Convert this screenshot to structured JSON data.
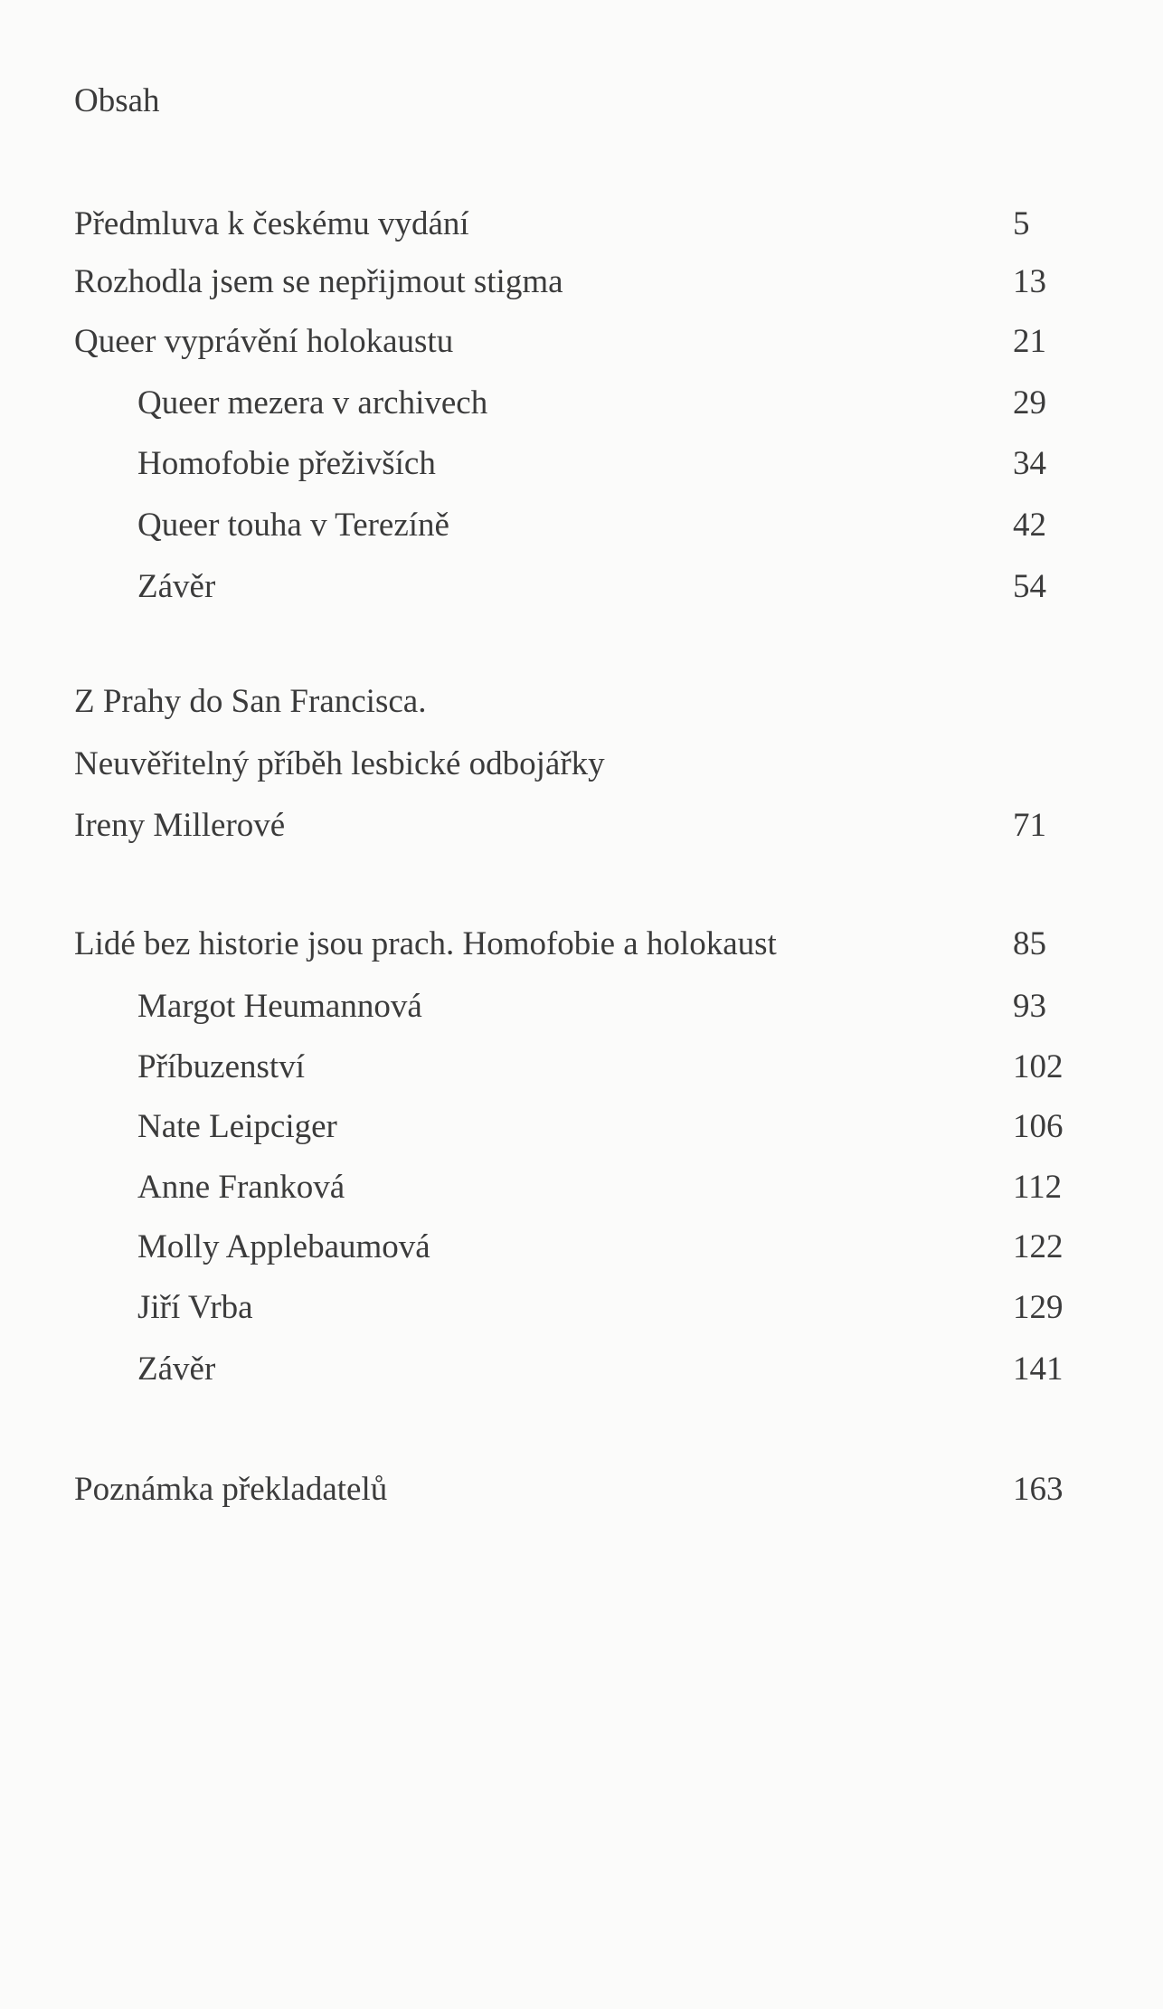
{
  "title": "Obsah",
  "entries": [
    {
      "label": "Předmluva k českému vydání",
      "page": "5",
      "level": 1
    },
    {
      "label": "Rozhodla jsem se nepřijmout stigma",
      "page": "13",
      "level": 1
    },
    {
      "label": "Queer vyprávění holokaustu",
      "page": "21",
      "level": 1
    },
    {
      "label": "Queer mezera v archivech",
      "page": "29",
      "level": 2
    },
    {
      "label": "Homofobie přeživších",
      "page": "34",
      "level": 2
    },
    {
      "label": "Queer touha v Terezíně",
      "page": "42",
      "level": 2
    },
    {
      "label": "Závěr",
      "page": "54",
      "level": 2
    },
    {
      "label": "Z Prahy do San Francisca.",
      "page": "",
      "level": 1
    },
    {
      "label": "Neuvěřitelný příběh lesbické odbojářky",
      "page": "",
      "level": 1
    },
    {
      "label": "Ireny Millerové",
      "page": "71",
      "level": 1
    },
    {
      "label": "Lidé bez historie jsou prach. Homofobie a holokaust",
      "page": "85",
      "level": 1
    },
    {
      "label": "Margot Heumannová",
      "page": "93",
      "level": 2
    },
    {
      "label": "Příbuzenství",
      "page": "102",
      "level": 2
    },
    {
      "label": "Nate Leipciger",
      "page": "106",
      "level": 2
    },
    {
      "label": "Anne Franková",
      "page": "112",
      "level": 2
    },
    {
      "label": "Molly Applebaumová",
      "page": "122",
      "level": 2
    },
    {
      "label": "Jiří Vrba",
      "page": "129",
      "level": 2
    },
    {
      "label": "Závěr",
      "page": "141",
      "level": 2
    },
    {
      "label": "Poznámka překladatelů",
      "page": "163",
      "level": 1
    }
  ]
}
